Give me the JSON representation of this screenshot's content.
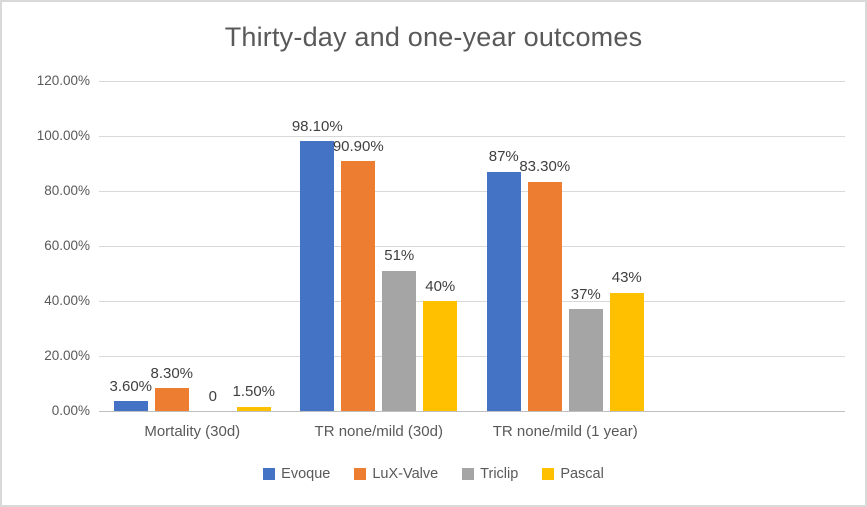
{
  "chart_data": {
    "type": "bar",
    "title": "Thirty-day and one-year outcomes",
    "categories": [
      "Mortality (30d)",
      "TR none/mild (30d)",
      "TR none/mild (1 year)"
    ],
    "series": [
      {
        "name": "Evoque",
        "color": "#4472C4",
        "values": [
          3.6,
          98.1,
          87.0
        ],
        "labels": [
          "3.60%",
          "98.10%",
          "87%"
        ]
      },
      {
        "name": "LuX-Valve",
        "color": "#ED7D31",
        "values": [
          8.3,
          90.9,
          83.3
        ],
        "labels": [
          "8.30%",
          "90.90%",
          "83.30%"
        ]
      },
      {
        "name": "Triclip",
        "color": "#A5A5A5",
        "values": [
          0.0,
          51.0,
          37.0
        ],
        "labels": [
          "0",
          "51%",
          "37%"
        ]
      },
      {
        "name": "Pascal",
        "color": "#FFC000",
        "values": [
          1.5,
          40.0,
          43.0
        ],
        "labels": [
          "1.50%",
          "40%",
          "43%"
        ]
      }
    ],
    "xlabel": "",
    "ylabel": "",
    "ylim": [
      0,
      120
    ],
    "yticks": [
      {
        "value": 0,
        "label": "0.00%"
      },
      {
        "value": 20,
        "label": "20.00%"
      },
      {
        "value": 40,
        "label": "40.00%"
      },
      {
        "value": 60,
        "label": "60.00%"
      },
      {
        "value": 80,
        "label": "80.00%"
      },
      {
        "value": 100,
        "label": "100.00%"
      },
      {
        "value": 120,
        "label": "120.00%"
      }
    ],
    "grid": true,
    "legend_position": "bottom",
    "category_slots": 4
  },
  "colors": {
    "background": "#FFFFFF",
    "border": "#D9D9D9",
    "gridline": "#D9D9D9",
    "axis_line": "#BFBFBF",
    "axis_text": "#595959",
    "data_label_text": "#404040"
  }
}
